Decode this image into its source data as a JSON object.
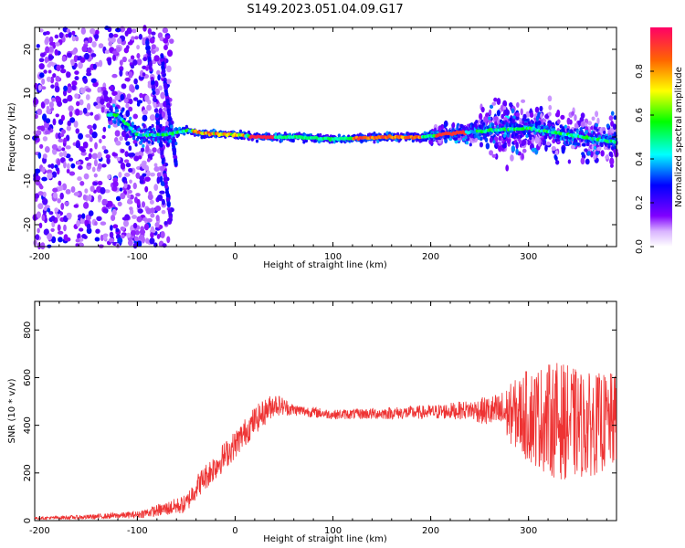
{
  "title": "S149.2023.051.04.09.G17",
  "chart_data": [
    {
      "type": "heatmap",
      "title": "S149.2023.051.04.09.G17",
      "xlabel": "Height of straight line (km)",
      "ylabel": "Frequency (Hz)",
      "xlim": [
        -205,
        390
      ],
      "ylim": [
        -25,
        25
      ],
      "x_ticks": [
        -200,
        -100,
        0,
        100,
        200,
        300
      ],
      "y_ticks": [
        -20,
        -10,
        0,
        10,
        20
      ],
      "colorbar": {
        "label": "Normalized spectral amplitude",
        "range": [
          0.0,
          1.0
        ],
        "ticks": [
          "0.0",
          "0.2",
          "0.4",
          "0.6",
          "0.8"
        ]
      },
      "dominant_frequency_track": [
        {
          "height_km": -120,
          "freq_hz": 5
        },
        {
          "height_km": -100,
          "freq_hz": 0.5
        },
        {
          "height_km": -70,
          "freq_hz": 0.5
        },
        {
          "height_km": -50,
          "freq_hz": 1.5
        },
        {
          "height_km": -30,
          "freq_hz": 0.8
        },
        {
          "height_km": 0,
          "freq_hz": 0.5
        },
        {
          "height_km": 20,
          "freq_hz": 0
        },
        {
          "height_km": 60,
          "freq_hz": 0
        },
        {
          "height_km": 100,
          "freq_hz": -0.5
        },
        {
          "height_km": 150,
          "freq_hz": 0
        },
        {
          "height_km": 190,
          "freq_hz": 0
        },
        {
          "height_km": 220,
          "freq_hz": 0.8
        },
        {
          "height_km": 260,
          "freq_hz": 1.5
        },
        {
          "height_km": 300,
          "freq_hz": 2
        },
        {
          "height_km": 340,
          "freq_hz": 0.5
        },
        {
          "height_km": 385,
          "freq_hz": -1
        }
      ]
    },
    {
      "type": "line",
      "xlabel": "Height of straight line (km)",
      "ylabel": "SNR (10 * v/v)",
      "xlim": [
        -205,
        390
      ],
      "ylim": [
        0,
        920
      ],
      "x_ticks": [
        -200,
        -100,
        0,
        100,
        200,
        300
      ],
      "y_ticks": [
        0,
        200,
        400,
        600,
        800
      ],
      "color": "#ee3333",
      "envelope": [
        {
          "x": -205,
          "y": 10,
          "spread": 5
        },
        {
          "x": -150,
          "y": 15,
          "spread": 10
        },
        {
          "x": -100,
          "y": 25,
          "spread": 15
        },
        {
          "x": -70,
          "y": 50,
          "spread": 30
        },
        {
          "x": -50,
          "y": 70,
          "spread": 40
        },
        {
          "x": -40,
          "y": 140,
          "spread": 50
        },
        {
          "x": -20,
          "y": 230,
          "spread": 60
        },
        {
          "x": 0,
          "y": 320,
          "spread": 60
        },
        {
          "x": 20,
          "y": 420,
          "spread": 60
        },
        {
          "x": 40,
          "y": 490,
          "spread": 50
        },
        {
          "x": 60,
          "y": 465,
          "spread": 25
        },
        {
          "x": 100,
          "y": 445,
          "spread": 20
        },
        {
          "x": 150,
          "y": 450,
          "spread": 25
        },
        {
          "x": 200,
          "y": 455,
          "spread": 30
        },
        {
          "x": 240,
          "y": 465,
          "spread": 40
        },
        {
          "x": 270,
          "y": 455,
          "spread": 80
        },
        {
          "x": 300,
          "y": 440,
          "spread": 200
        },
        {
          "x": 330,
          "y": 420,
          "spread": 250
        },
        {
          "x": 360,
          "y": 400,
          "spread": 220
        },
        {
          "x": 390,
          "y": 420,
          "spread": 200
        }
      ]
    }
  ]
}
